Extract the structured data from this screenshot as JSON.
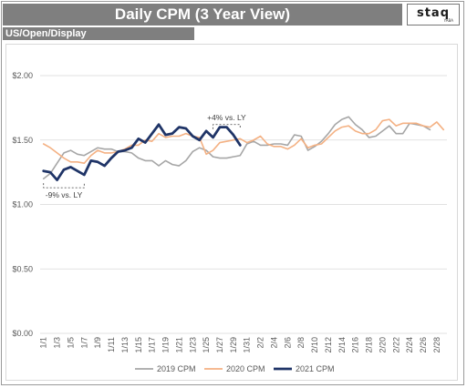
{
  "header": {
    "title": "Daily CPM (3 Year View)",
    "logo_text": "staq",
    "logo_sub": "YABA"
  },
  "subheader": {
    "label": "US/Open/Display"
  },
  "colors": {
    "s2019": "#a6a6a6",
    "s2020": "#f4b183",
    "s2021": "#1f3467",
    "header_bg": "#7f7f7f"
  },
  "chart_data": {
    "type": "line",
    "title": "Daily CPM (3 Year View)",
    "ylim": [
      0,
      2.0
    ],
    "yticks": [
      0,
      0.5,
      1.0,
      1.5,
      2.0
    ],
    "ytick_labels": [
      "$0.00",
      "$0.50",
      "$1.00",
      "$1.50",
      "$2.00"
    ],
    "grid": true,
    "legend_position": "bottom",
    "x": [
      "1/1",
      "1/2",
      "1/3",
      "1/4",
      "1/5",
      "1/6",
      "1/7",
      "1/8",
      "1/9",
      "1/10",
      "1/11",
      "1/12",
      "1/13",
      "1/14",
      "1/15",
      "1/16",
      "1/17",
      "1/18",
      "1/19",
      "1/20",
      "1/21",
      "1/22",
      "1/23",
      "1/24",
      "1/25",
      "1/26",
      "1/27",
      "1/28",
      "1/29",
      "1/30",
      "1/31",
      "2/1",
      "2/2",
      "2/3",
      "2/4",
      "2/5",
      "2/6",
      "2/7",
      "2/8",
      "2/9",
      "2/10",
      "2/11",
      "2/12",
      "2/13",
      "2/14",
      "2/15",
      "2/16",
      "2/17",
      "2/18",
      "2/19",
      "2/20",
      "2/21",
      "2/22",
      "2/23",
      "2/24",
      "2/25",
      "2/26",
      "2/27",
      "2/28",
      "2/29"
    ],
    "xtick_labels": [
      "1/1",
      "1/3",
      "1/5",
      "1/7",
      "1/9",
      "1/11",
      "1/13",
      "1/15",
      "1/17",
      "1/19",
      "1/21",
      "1/23",
      "1/25",
      "1/27",
      "1/29",
      "1/31",
      "2/2",
      "2/4",
      "2/6",
      "2/8",
      "2/10",
      "2/12",
      "2/14",
      "2/16",
      "2/18",
      "2/20",
      "2/22",
      "2/24",
      "2/26",
      "2/28"
    ],
    "series": [
      {
        "name": "2019 CPM",
        "color": "#a6a6a6",
        "values": [
          1.2,
          1.24,
          1.32,
          1.4,
          1.42,
          1.39,
          1.38,
          1.41,
          1.44,
          1.43,
          1.43,
          1.41,
          1.41,
          1.4,
          1.36,
          1.34,
          1.34,
          1.3,
          1.34,
          1.31,
          1.3,
          1.34,
          1.41,
          1.44,
          1.42,
          1.37,
          1.36,
          1.36,
          1.37,
          1.38,
          1.47,
          1.49,
          1.46,
          1.46,
          1.47,
          1.47,
          1.46,
          1.54,
          1.53,
          1.42,
          1.45,
          1.49,
          1.55,
          1.62,
          1.66,
          1.68,
          1.62,
          1.58,
          1.52,
          1.53,
          1.57,
          1.61,
          1.55,
          1.55,
          1.63,
          1.62,
          1.61,
          1.58,
          null,
          null
        ]
      },
      {
        "name": "2020 CPM",
        "color": "#f4b183",
        "values": [
          1.47,
          1.44,
          1.4,
          1.36,
          1.33,
          1.33,
          1.32,
          1.38,
          1.42,
          1.4,
          1.4,
          1.41,
          1.43,
          1.46,
          1.46,
          1.5,
          1.49,
          1.55,
          1.52,
          1.53,
          1.53,
          1.55,
          1.53,
          1.52,
          1.39,
          1.42,
          1.48,
          1.49,
          1.5,
          1.51,
          1.48,
          1.5,
          1.53,
          1.47,
          1.45,
          1.45,
          1.43,
          1.46,
          1.51,
          1.44,
          1.46,
          1.47,
          1.52,
          1.57,
          1.6,
          1.61,
          1.57,
          1.55,
          1.55,
          1.58,
          1.65,
          1.66,
          1.61,
          1.63,
          1.63,
          1.63,
          1.61,
          1.6,
          1.64,
          1.58
        ]
      },
      {
        "name": "2021 CPM",
        "color": "#1f3467",
        "values": [
          1.26,
          1.25,
          1.19,
          1.27,
          1.29,
          1.26,
          1.23,
          1.34,
          1.33,
          1.3,
          1.36,
          1.41,
          1.42,
          1.44,
          1.51,
          1.48,
          1.55,
          1.62,
          1.54,
          1.55,
          1.6,
          1.59,
          1.53,
          1.5,
          1.57,
          1.52,
          1.6,
          1.6,
          1.54,
          1.46,
          null,
          null,
          null,
          null,
          null,
          null,
          null,
          null,
          null,
          null,
          null,
          null,
          null,
          null,
          null,
          null,
          null,
          null,
          null,
          null,
          null,
          null,
          null,
          null,
          null,
          null,
          null,
          null,
          null,
          null
        ]
      }
    ],
    "annotations": [
      {
        "text": "+4% vs. LY",
        "x_from": "1/26",
        "x_to": "1/30",
        "y": 1.62
      },
      {
        "text": "-9% vs. LY",
        "x_from": "1/1",
        "x_to": "1/7",
        "y": 1.13
      }
    ]
  }
}
